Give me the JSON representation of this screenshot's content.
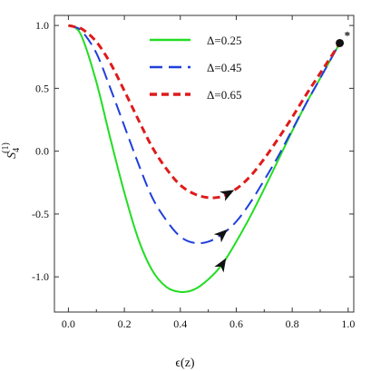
{
  "chart_data": {
    "type": "line",
    "xlabel": "ϵ(z)",
    "ylabel_main": "S",
    "ylabel_sub": "4",
    "ylabel_sup": "(1)",
    "xlim": [
      -0.05,
      1.02
    ],
    "ylim": [
      -1.28,
      1.08
    ],
    "xticks": [
      {
        "value": 0.0,
        "label": "0.0"
      },
      {
        "value": 0.2,
        "label": "0.2"
      },
      {
        "value": 0.4,
        "label": "0.4"
      },
      {
        "value": 0.6,
        "label": "0.6"
      },
      {
        "value": 0.8,
        "label": "0.8"
      },
      {
        "value": 1.0,
        "label": "1.0"
      }
    ],
    "yticks": [
      {
        "value": 1.0,
        "label": "1.0"
      },
      {
        "value": 0.5,
        "label": "0.5"
      },
      {
        "value": 0.0,
        "label": "0.0"
      },
      {
        "value": -0.5,
        "label": "-0.5"
      },
      {
        "value": -1.0,
        "label": "-1.0"
      }
    ],
    "legend_position": "top-center",
    "grid": false,
    "series": [
      {
        "name": "Δ=0.25",
        "color": "#22dd22",
        "dash": "solid",
        "points": [
          [
            0.0,
            1.0
          ],
          [
            0.02,
            0.99
          ],
          [
            0.05,
            0.9
          ],
          [
            0.1,
            0.55
          ],
          [
            0.15,
            0.1
          ],
          [
            0.2,
            -0.33
          ],
          [
            0.25,
            -0.7
          ],
          [
            0.3,
            -0.95
          ],
          [
            0.35,
            -1.08
          ],
          [
            0.4,
            -1.12
          ],
          [
            0.45,
            -1.1
          ],
          [
            0.5,
            -1.02
          ],
          [
            0.55,
            -0.9
          ],
          [
            0.6,
            -0.72
          ],
          [
            0.65,
            -0.52
          ],
          [
            0.7,
            -0.3
          ],
          [
            0.75,
            -0.07
          ],
          [
            0.8,
            0.16
          ],
          [
            0.85,
            0.38
          ],
          [
            0.9,
            0.58
          ],
          [
            0.95,
            0.78
          ],
          [
            0.97,
            0.86
          ]
        ],
        "arrow_at": 0.55
      },
      {
        "name": "Δ=0.45",
        "color": "#1f3fdc",
        "dash": "long",
        "points": [
          [
            0.0,
            1.0
          ],
          [
            0.02,
            0.99
          ],
          [
            0.05,
            0.95
          ],
          [
            0.1,
            0.78
          ],
          [
            0.15,
            0.5
          ],
          [
            0.2,
            0.2
          ],
          [
            0.25,
            -0.1
          ],
          [
            0.3,
            -0.37
          ],
          [
            0.35,
            -0.55
          ],
          [
            0.4,
            -0.68
          ],
          [
            0.45,
            -0.73
          ],
          [
            0.5,
            -0.72
          ],
          [
            0.55,
            -0.66
          ],
          [
            0.6,
            -0.56
          ],
          [
            0.65,
            -0.41
          ],
          [
            0.7,
            -0.23
          ],
          [
            0.75,
            -0.04
          ],
          [
            0.8,
            0.17
          ],
          [
            0.85,
            0.38
          ],
          [
            0.9,
            0.58
          ],
          [
            0.95,
            0.78
          ],
          [
            0.97,
            0.86
          ]
        ],
        "arrow_at": 0.55
      },
      {
        "name": "Δ=0.65",
        "color": "#e01a1a",
        "dash": "short",
        "points": [
          [
            0.0,
            1.0
          ],
          [
            0.02,
            0.99
          ],
          [
            0.05,
            0.97
          ],
          [
            0.1,
            0.87
          ],
          [
            0.15,
            0.7
          ],
          [
            0.2,
            0.48
          ],
          [
            0.25,
            0.25
          ],
          [
            0.3,
            0.03
          ],
          [
            0.35,
            -0.14
          ],
          [
            0.4,
            -0.27
          ],
          [
            0.45,
            -0.34
          ],
          [
            0.5,
            -0.37
          ],
          [
            0.55,
            -0.36
          ],
          [
            0.6,
            -0.3
          ],
          [
            0.65,
            -0.2
          ],
          [
            0.7,
            -0.06
          ],
          [
            0.75,
            0.1
          ],
          [
            0.8,
            0.27
          ],
          [
            0.85,
            0.45
          ],
          [
            0.9,
            0.62
          ],
          [
            0.95,
            0.79
          ],
          [
            0.97,
            0.86
          ]
        ],
        "arrow_at": 0.57
      }
    ],
    "endpoint": {
      "x": 0.97,
      "y": 0.86,
      "label": "*"
    }
  }
}
